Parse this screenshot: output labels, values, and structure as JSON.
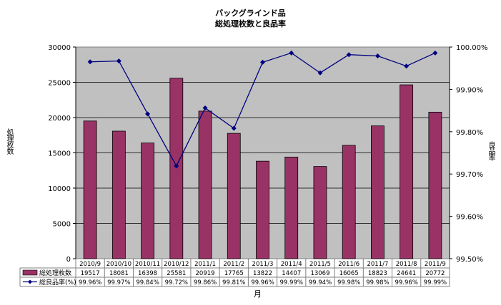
{
  "chart_data": {
    "type": "bar",
    "title": "バックグラインド品",
    "subtitle": "総処理枚数と良品率",
    "xlabel": "月",
    "ylabel_left": "処理枚数",
    "ylabel_right": "良品率",
    "categories": [
      "2010/9",
      "2010/10",
      "2010/11",
      "2010/12",
      "2011/1",
      "2011/2",
      "2011/3",
      "2011/4",
      "2011/5",
      "2011/6",
      "2011/7",
      "2011/8",
      "2011/9"
    ],
    "series": [
      {
        "name": "総処理枚数",
        "type": "bar",
        "axis": "left",
        "color": "#993366",
        "values": [
          19517,
          18081,
          16398,
          25581,
          20919,
          17765,
          13822,
          14407,
          13069,
          16065,
          18823,
          24641,
          20772
        ],
        "labels": [
          "19517",
          "18081",
          "16398",
          "25581",
          "20919",
          "17765",
          "13822",
          "14407",
          "13069",
          "16065",
          "18823",
          "24641",
          "20772"
        ]
      },
      {
        "name": "総良品率(%)",
        "type": "line",
        "axis": "right",
        "color": "#000080",
        "values": [
          99.965,
          99.967,
          99.842,
          99.719,
          99.856,
          99.808,
          99.964,
          99.986,
          99.939,
          99.982,
          99.979,
          99.955,
          99.986
        ],
        "labels": [
          "99.96%",
          "99.97%",
          "99.84%",
          "99.72%",
          "99.86%",
          "99.81%",
          "99.96%",
          "99.99%",
          "99.94%",
          "99.98%",
          "99.98%",
          "99.96%",
          "99.99%"
        ]
      }
    ],
    "ylim_left": [
      0,
      30000
    ],
    "yticks_left": [
      "0",
      "5000",
      "10000",
      "15000",
      "20000",
      "25000",
      "30000"
    ],
    "ylim_right": [
      99.5,
      100.0
    ],
    "yticks_right": [
      "99.50%",
      "99.60%",
      "99.70%",
      "99.80%",
      "99.90%",
      "100.00%"
    ],
    "grid": true,
    "legend": "data-table",
    "plot_background": "#c0c0c0"
  }
}
